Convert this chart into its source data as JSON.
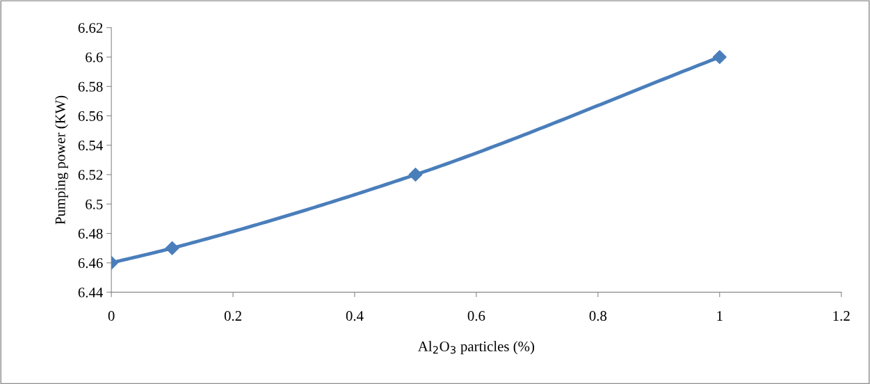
{
  "chart_data": {
    "type": "line",
    "xlabel": "Al$_{2}$O$_{3}$ particles (%)",
    "ylabel": "Pumping power (KW)",
    "series": [
      {
        "color": "#4a7ebb",
        "x": [
          0,
          0.1,
          0.5,
          1
        ],
        "values": [
          6.46,
          6.47,
          6.52,
          6.6
        ]
      }
    ],
    "xlim": [
      0,
      1.2
    ],
    "xticks": [
      0,
      0.2,
      0.4,
      0.6,
      0.8,
      1,
      1.2
    ],
    "ylim": [
      6.44,
      6.62
    ],
    "yticks": [
      6.44,
      6.46,
      6.48,
      6.5,
      6.52,
      6.54,
      6.56,
      6.58,
      6.6,
      6.62
    ],
    "marker": "diamond",
    "line_style": "solid",
    "grid": false,
    "legend": false
  }
}
